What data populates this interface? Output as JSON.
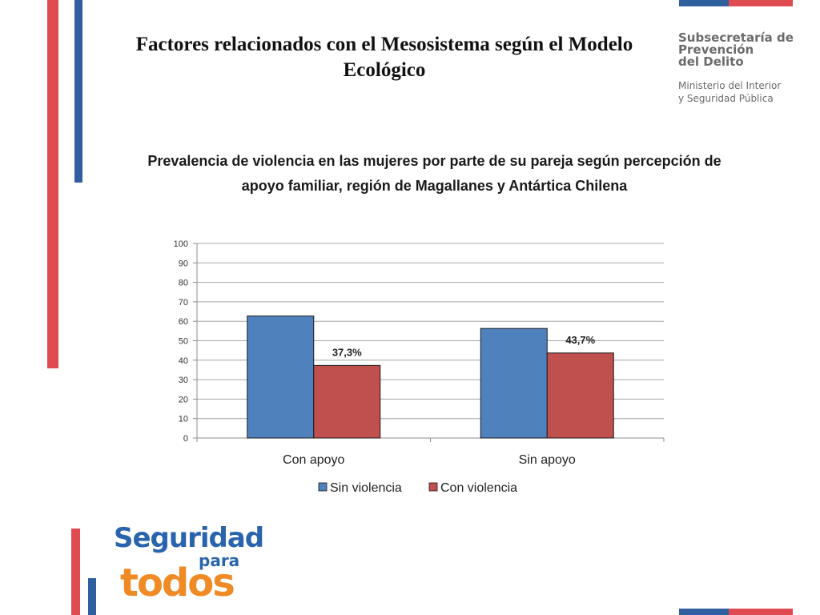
{
  "slide": {
    "title_line1": "Factores relacionados con el Mesosistema según el Modelo",
    "title_line2": "Ecológico"
  },
  "logo_top": {
    "line1": "Subsecretaría de",
    "line2": "Prevención",
    "line3": "del Delito",
    "line4": "Ministerio del Interior",
    "line5": "y Seguridad Pública"
  },
  "logo_bottom": {
    "line1": "Seguridad",
    "line2": "para",
    "line3": "todos"
  },
  "colors": {
    "stripe_blue": "#2f5f9e",
    "stripe_red": "#e04b52",
    "series_sin_violencia": "#4f81bd",
    "series_con_violencia": "#c0504d",
    "brand_blue": "#2a64ad",
    "brand_orange": "#f08a24"
  },
  "chart_data": {
    "type": "bar",
    "title_line1": "Prevalencia de violencia en las mujeres por parte de su pareja según percepción de",
    "title_line2": "apoyo familiar, región de Magallanes y Antártica Chilena",
    "categories": [
      "Con apoyo",
      "Sin apoyo"
    ],
    "series": [
      {
        "name": "Sin violencia",
        "values": [
          62.7,
          56.3
        ],
        "labels": [
          "",
          ""
        ]
      },
      {
        "name": "Con violencia",
        "values": [
          37.3,
          43.7
        ],
        "labels": [
          "37,3%",
          "43,7%"
        ]
      }
    ],
    "ylim": [
      0,
      100
    ],
    "yticks": [
      0,
      10,
      20,
      30,
      40,
      50,
      60,
      70,
      80,
      90,
      100
    ],
    "grid": true,
    "legend": "bottom"
  }
}
